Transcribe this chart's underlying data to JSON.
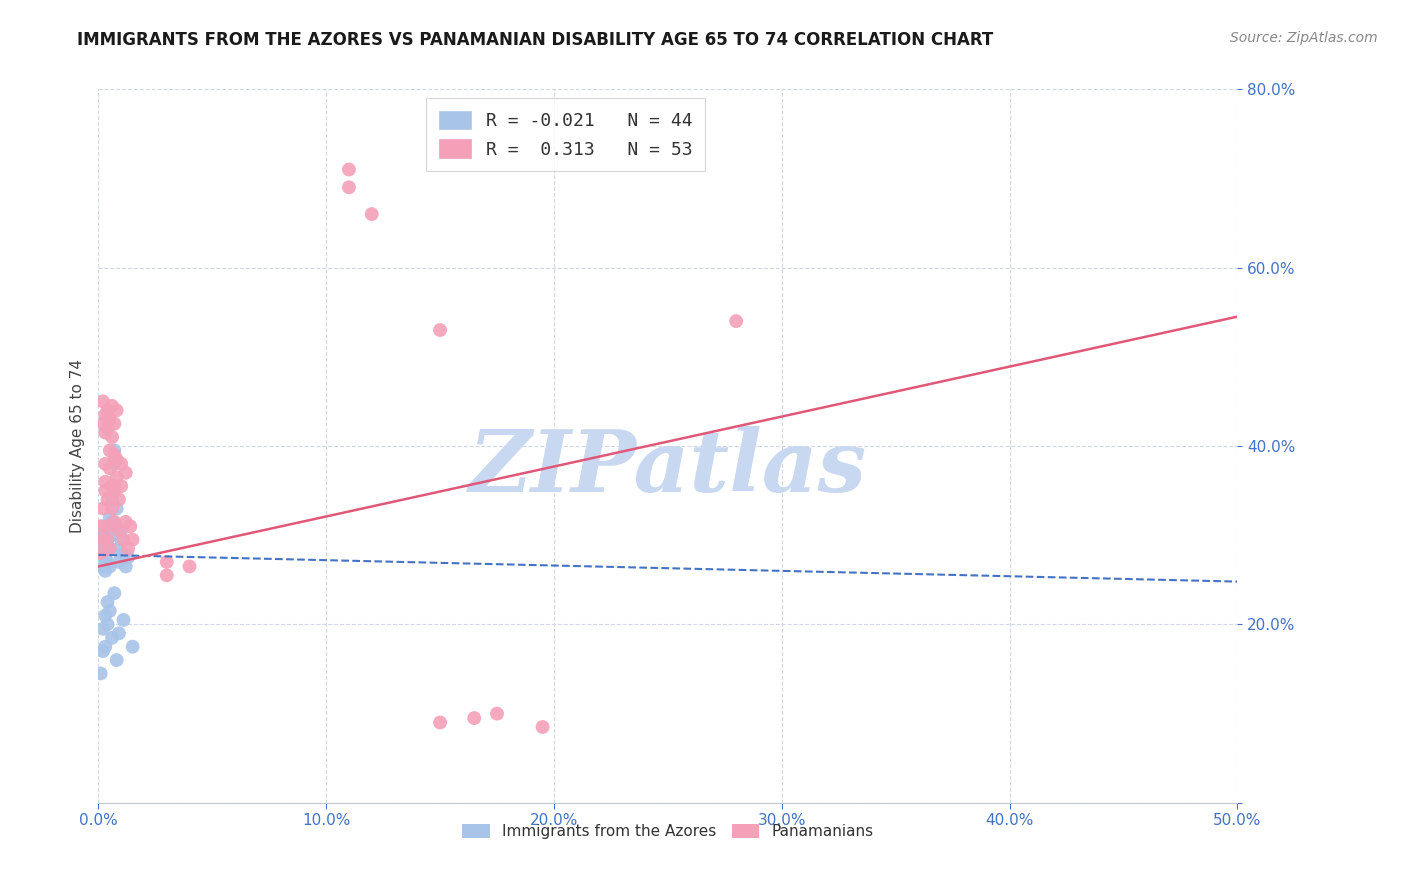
{
  "title": "IMMIGRANTS FROM THE AZORES VS PANAMANIAN DISABILITY AGE 65 TO 74 CORRELATION CHART",
  "source": "Source: ZipAtlas.com",
  "ylabel": "Disability Age 65 to 74",
  "xlim": [
    0.0,
    0.5
  ],
  "ylim": [
    0.0,
    0.8
  ],
  "xticks": [
    0.0,
    0.1,
    0.2,
    0.3,
    0.4,
    0.5
  ],
  "xticklabels": [
    "0.0%",
    "10.0%",
    "20.0%",
    "30.0%",
    "40.0%",
    "50.0%"
  ],
  "yticks": [
    0.0,
    0.2,
    0.4,
    0.6,
    0.8
  ],
  "yticklabels": [
    "",
    "20.0%",
    "40.0%",
    "60.0%",
    "80.0%"
  ],
  "azores_color": "#a8c4e8",
  "panama_color": "#f4a0b8",
  "azores_line_color": "#4472c4",
  "panama_line_color": "#e05878",
  "watermark": "ZIPatlas",
  "watermark_color": "#c8d8f0",
  "azores_R": -0.021,
  "azores_N": 44,
  "panama_R": 0.313,
  "panama_N": 53,
  "azores_intercept": 0.278,
  "azores_slope": -0.06,
  "panama_intercept": 0.265,
  "panama_slope": 0.56,
  "azores_scatter_x": [
    0.001,
    0.001,
    0.002,
    0.002,
    0.002,
    0.003,
    0.003,
    0.003,
    0.003,
    0.004,
    0.004,
    0.004,
    0.005,
    0.005,
    0.005,
    0.006,
    0.006,
    0.006,
    0.007,
    0.007,
    0.007,
    0.008,
    0.008,
    0.009,
    0.009,
    0.01,
    0.01,
    0.011,
    0.012,
    0.013,
    0.001,
    0.002,
    0.002,
    0.003,
    0.003,
    0.004,
    0.004,
    0.005,
    0.006,
    0.007,
    0.008,
    0.009,
    0.011,
    0.015
  ],
  "azores_scatter_y": [
    0.28,
    0.295,
    0.31,
    0.265,
    0.3,
    0.29,
    0.275,
    0.26,
    0.285,
    0.305,
    0.27,
    0.295,
    0.32,
    0.285,
    0.265,
    0.3,
    0.315,
    0.34,
    0.355,
    0.38,
    0.395,
    0.33,
    0.31,
    0.285,
    0.27,
    0.295,
    0.305,
    0.28,
    0.265,
    0.275,
    0.145,
    0.17,
    0.195,
    0.21,
    0.175,
    0.225,
    0.2,
    0.215,
    0.185,
    0.235,
    0.16,
    0.19,
    0.205,
    0.175
  ],
  "panama_scatter_x": [
    0.001,
    0.001,
    0.002,
    0.002,
    0.003,
    0.003,
    0.003,
    0.004,
    0.004,
    0.004,
    0.005,
    0.005,
    0.005,
    0.006,
    0.006,
    0.007,
    0.007,
    0.007,
    0.008,
    0.008,
    0.009,
    0.009,
    0.01,
    0.01,
    0.011,
    0.012,
    0.012,
    0.013,
    0.014,
    0.015,
    0.002,
    0.002,
    0.003,
    0.003,
    0.004,
    0.004,
    0.005,
    0.006,
    0.006,
    0.007,
    0.008,
    0.15,
    0.28,
    0.15,
    0.165,
    0.175,
    0.195,
    0.03,
    0.03,
    0.04,
    0.11,
    0.11,
    0.12
  ],
  "panama_scatter_y": [
    0.28,
    0.31,
    0.295,
    0.33,
    0.36,
    0.38,
    0.35,
    0.295,
    0.31,
    0.34,
    0.285,
    0.375,
    0.395,
    0.33,
    0.355,
    0.35,
    0.39,
    0.315,
    0.365,
    0.385,
    0.34,
    0.305,
    0.38,
    0.355,
    0.295,
    0.37,
    0.315,
    0.285,
    0.31,
    0.295,
    0.425,
    0.45,
    0.435,
    0.415,
    0.44,
    0.42,
    0.43,
    0.41,
    0.445,
    0.425,
    0.44,
    0.53,
    0.54,
    0.09,
    0.095,
    0.1,
    0.085,
    0.27,
    0.255,
    0.265,
    0.71,
    0.69,
    0.66
  ],
  "title_fontsize": 12,
  "source_fontsize": 10,
  "tick_fontsize": 11,
  "legend_fontsize": 13
}
